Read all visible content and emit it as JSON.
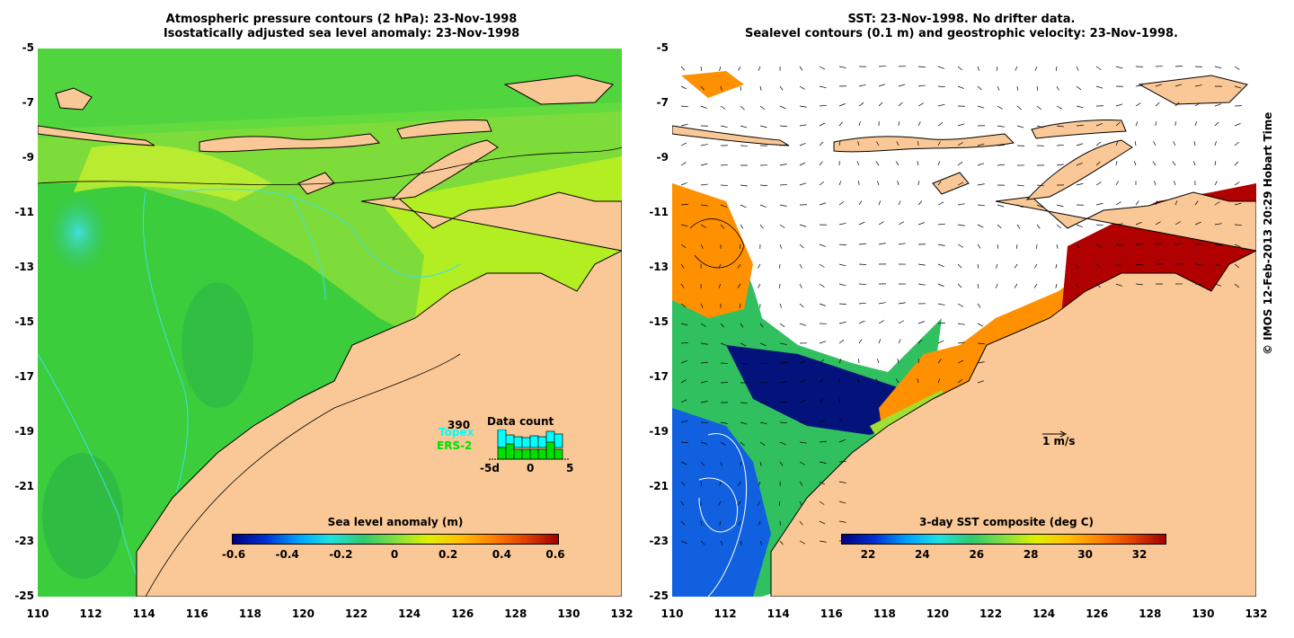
{
  "left_panel": {
    "title_line1": "Atmospheric pressure contours (2 hPa): 23-Nov-1998",
    "title_line2": "Isostatically adjusted sea level anomaly: 23-Nov-1998",
    "colorbar": {
      "label": "Sea level anomaly (m)",
      "ticks": [
        "-0.6",
        "-0.4",
        "-0.2",
        "0",
        "0.2",
        "0.4",
        "0.6"
      ]
    },
    "data_count": {
      "title": "Data count",
      "number": "390",
      "topex_label": "Topex",
      "ers_label": "ERS-2",
      "axis_ticks": [
        "-5d",
        "0",
        "5"
      ],
      "topex_color": "#00ffff",
      "ers_color": "#00e000"
    }
  },
  "right_panel": {
    "title_line1": "SST: 23-Nov-1998. No drifter data.",
    "title_line2": "Sealevel contours (0.1 m) and geostrophic velocity: 23-Nov-1998.",
    "velocity_scale_label": "1 m/s",
    "colorbar": {
      "label": "3-day SST composite (deg C)",
      "ticks": [
        "22",
        "24",
        "26",
        "28",
        "30",
        "32"
      ]
    }
  },
  "axes": {
    "lat_ticks": [
      "-5",
      "-7",
      "-9",
      "-11",
      "-13",
      "-15",
      "-17",
      "-19",
      "-21",
      "-23",
      "-25"
    ],
    "lon_ticks": [
      "110",
      "112",
      "114",
      "116",
      "118",
      "120",
      "122",
      "124",
      "126",
      "128",
      "130",
      "132"
    ]
  },
  "side_text": "© IMOS 12-Feb-2013 20:29 Hobart Time",
  "colors": {
    "land": "#fac896",
    "ocean_green": "#3ccd3c",
    "frame": "#000000"
  }
}
